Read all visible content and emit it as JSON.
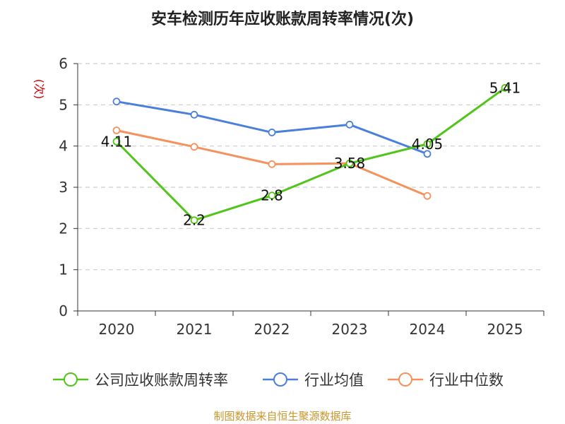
{
  "chart_data": {
    "type": "line",
    "title": "安车检测历年应收账款周转率情况(次)",
    "ylabel": "(次)",
    "xlabel": "",
    "categories": [
      "2020",
      "2021",
      "2022",
      "2023",
      "2024",
      "2025"
    ],
    "y_ticks": [
      "0",
      "1",
      "2",
      "3",
      "4",
      "5",
      "6"
    ],
    "ylim": [
      0,
      6
    ],
    "grid": "horizontal-dashed",
    "legend_position": "bottom",
    "series": [
      {
        "name": "公司应收账款周转率",
        "color": "#52c41a",
        "values": [
          4.11,
          2.2,
          2.8,
          3.58,
          4.05,
          5.41
        ],
        "labels": [
          "4.11",
          "2.2",
          "2.8",
          "3.58",
          "4.05",
          "5.41"
        ]
      },
      {
        "name": "行业均值",
        "color": "#4a7fdb",
        "values": [
          5.08,
          4.76,
          4.33,
          4.52,
          3.81,
          null
        ]
      },
      {
        "name": "行业中位数",
        "color": "#f5915c",
        "values": [
          4.38,
          3.98,
          3.56,
          3.58,
          2.79,
          null
        ]
      }
    ]
  },
  "colors": {
    "ylabel": "#cc0000",
    "source": "#c8962c",
    "axis": "#333333",
    "grid": "#cccccc"
  },
  "source": "制图数据来自恒生聚源数据库"
}
